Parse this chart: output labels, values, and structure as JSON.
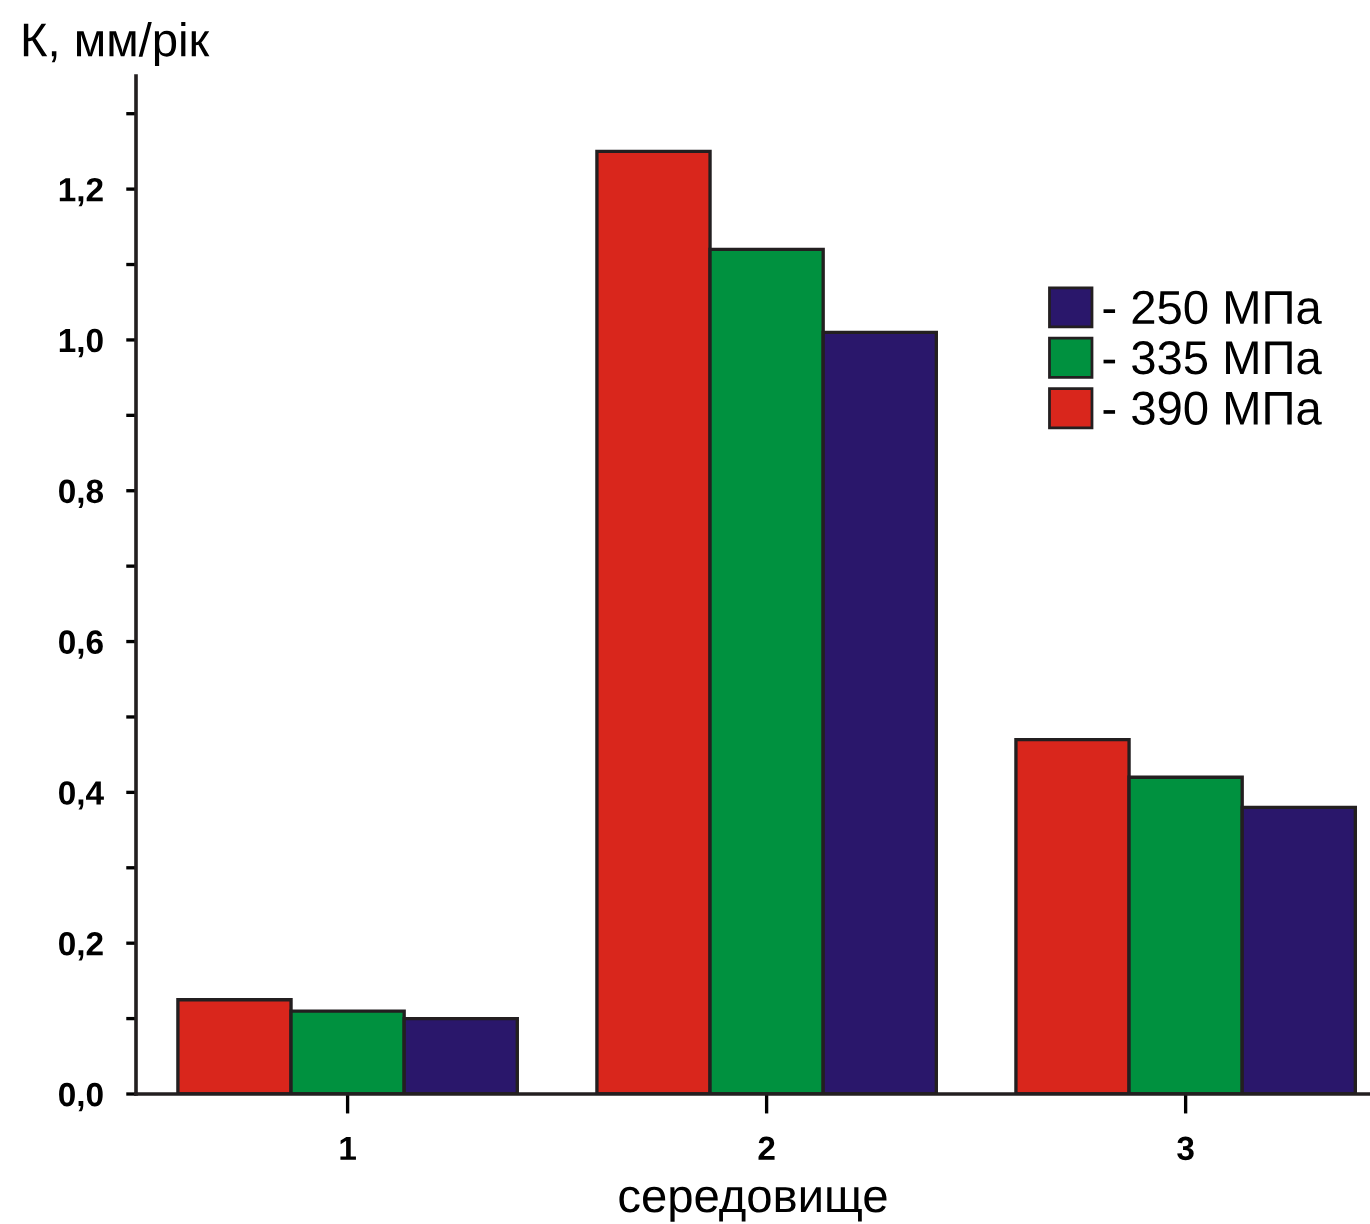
{
  "chart_data": {
    "type": "bar",
    "xlabel": "середовище",
    "ylabel": "К, мм/рік",
    "categories": [
      "1",
      "2",
      "3"
    ],
    "series": [
      {
        "name": "- 390 МПа",
        "color": "#d9261c",
        "values": [
          0.125,
          1.25,
          0.47
        ]
      },
      {
        "name": "- 335 МПа",
        "color": "#00913f",
        "values": [
          0.11,
          1.12,
          0.42
        ]
      },
      {
        "name": "- 250 МПа",
        "color": "#2a176b",
        "values": [
          0.1,
          1.01,
          0.38
        ]
      }
    ],
    "ylim": [
      0,
      1.35
    ],
    "yticks": [
      {
        "value": 0,
        "label": "0,0"
      },
      {
        "value": 0.1,
        "label": null
      },
      {
        "value": 0.2,
        "label": "0,2"
      },
      {
        "value": 0.3,
        "label": null
      },
      {
        "value": 0.4,
        "label": "0,4"
      },
      {
        "value": 0.5,
        "label": null
      },
      {
        "value": 0.6,
        "label": "0,6"
      },
      {
        "value": 0.7,
        "label": null
      },
      {
        "value": 0.8,
        "label": "0,8"
      },
      {
        "value": 0.9,
        "label": null
      },
      {
        "value": 1.0,
        "label": "1,0"
      },
      {
        "value": 1.1,
        "label": null
      },
      {
        "value": 1.2,
        "label": "1,2"
      },
      {
        "value": 1.3,
        "label": null
      }
    ],
    "grid": false,
    "legend": "right"
  }
}
